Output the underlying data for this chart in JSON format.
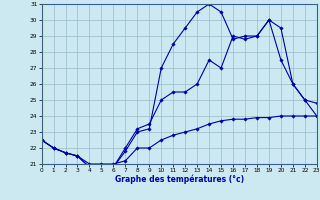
{
  "xlabel": "Graphe des températures (°c)",
  "background_color": "#cce8f0",
  "grid_color": "#99bbcc",
  "line_color": "#0000aa",
  "xlim": [
    0,
    23
  ],
  "ylim": [
    21,
    31
  ],
  "yticks": [
    21,
    22,
    23,
    24,
    25,
    26,
    27,
    28,
    29,
    30,
    31
  ],
  "xticks": [
    0,
    1,
    2,
    3,
    4,
    5,
    6,
    7,
    8,
    9,
    10,
    11,
    12,
    13,
    14,
    15,
    16,
    17,
    18,
    19,
    20,
    21,
    22,
    23
  ],
  "series": [
    {
      "x": [
        0,
        1,
        2,
        3,
        4,
        5,
        6,
        7,
        8,
        9,
        10,
        11,
        12,
        13,
        14,
        15,
        16,
        17,
        18,
        19,
        20,
        21,
        22,
        23
      ],
      "y": [
        22.5,
        22.0,
        21.7,
        21.5,
        21.0,
        21.0,
        21.0,
        21.2,
        22.0,
        22.0,
        22.5,
        22.8,
        23.0,
        23.2,
        23.5,
        23.7,
        23.8,
        23.8,
        23.9,
        23.9,
        24.0,
        24.0,
        24.0,
        24.0
      ]
    },
    {
      "x": [
        0,
        1,
        2,
        3,
        4,
        5,
        6,
        7,
        8,
        9,
        10,
        11,
        12,
        13,
        14,
        15,
        16,
        17,
        18,
        19,
        20,
        21,
        22,
        23
      ],
      "y": [
        22.5,
        22.0,
        21.7,
        21.5,
        20.8,
        20.8,
        20.8,
        21.8,
        23.0,
        23.2,
        27.0,
        28.5,
        29.5,
        30.5,
        31.0,
        30.5,
        28.8,
        29.0,
        29.0,
        30.0,
        29.5,
        26.0,
        25.0,
        24.0
      ]
    },
    {
      "x": [
        0,
        1,
        2,
        3,
        4,
        5,
        6,
        7,
        8,
        9,
        10,
        11,
        12,
        13,
        14,
        15,
        16,
        17,
        18,
        19,
        20,
        21,
        22,
        23
      ],
      "y": [
        22.5,
        22.0,
        21.7,
        21.5,
        20.8,
        20.8,
        20.8,
        22.0,
        23.2,
        23.5,
        25.0,
        25.5,
        25.5,
        26.0,
        27.5,
        27.0,
        29.0,
        28.8,
        29.0,
        30.0,
        27.5,
        26.0,
        25.0,
        24.8
      ]
    }
  ]
}
